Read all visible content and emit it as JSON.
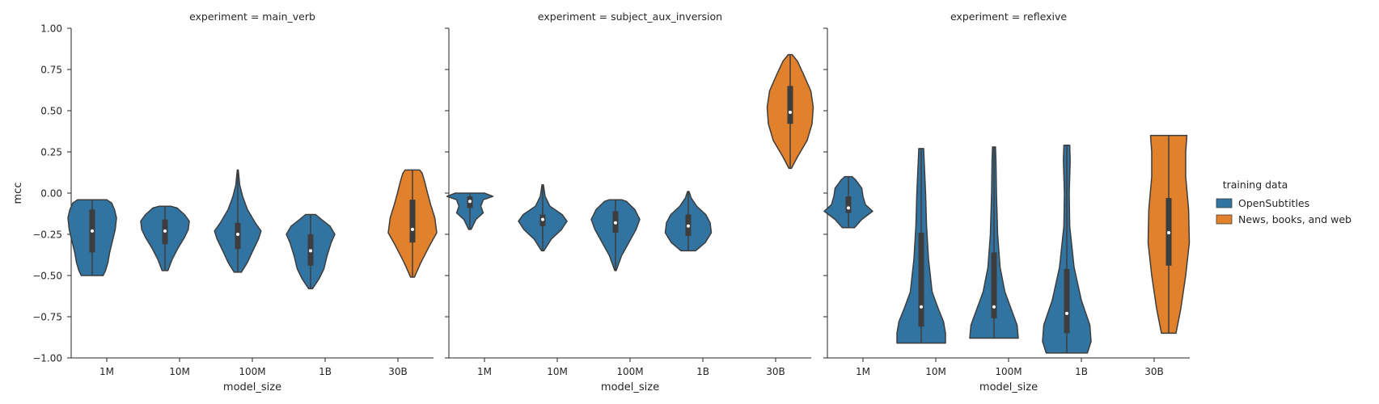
{
  "chart_data": {
    "type": "violin",
    "ylabel": "mcc",
    "xlabel": "model_size",
    "ylim": [
      -1.0,
      1.0
    ],
    "yticks": [
      "1.00",
      "0.75",
      "0.50",
      "0.25",
      "0.00",
      "−0.25",
      "−0.50",
      "−0.75",
      "−1.00"
    ],
    "ytick_values": [
      1.0,
      0.75,
      0.5,
      0.25,
      0.0,
      -0.25,
      -0.5,
      -0.75,
      -1.0
    ],
    "categories": [
      "1M",
      "10M",
      "100M",
      "1B",
      "30B"
    ],
    "legend": {
      "title": "training data",
      "entries": [
        {
          "label": "OpenSubtitles",
          "color": "#3274a1"
        },
        {
          "label": "News, books, and web",
          "color": "#e1812c"
        }
      ]
    },
    "panels": [
      {
        "title": "experiment = main_verb",
        "violins": [
          {
            "category": "1M",
            "series": "OpenSubtitles",
            "min": -0.5,
            "max": -0.04,
            "q1": -0.36,
            "median": -0.23,
            "q3": -0.1,
            "shape": [
              [
                -0.5,
                0.45
              ],
              [
                -0.47,
                0.55
              ],
              [
                -0.42,
                0.65
              ],
              [
                -0.36,
                0.72
              ],
              [
                -0.3,
                0.82
              ],
              [
                -0.22,
                0.95
              ],
              [
                -0.15,
                1.0
              ],
              [
                -0.1,
                0.92
              ],
              [
                -0.06,
                0.8
              ],
              [
                -0.04,
                0.6
              ]
            ]
          },
          {
            "category": "10M",
            "series": "OpenSubtitles",
            "min": -0.47,
            "max": -0.08,
            "q1": -0.31,
            "median": -0.23,
            "q3": -0.16,
            "shape": [
              [
                -0.47,
                0.12
              ],
              [
                -0.4,
                0.3
              ],
              [
                -0.33,
                0.55
              ],
              [
                -0.27,
                0.8
              ],
              [
                -0.22,
                0.96
              ],
              [
                -0.17,
                1.0
              ],
              [
                -0.13,
                0.8
              ],
              [
                -0.09,
                0.5
              ],
              [
                -0.08,
                0.25
              ]
            ]
          },
          {
            "category": "100M",
            "series": "OpenSubtitles",
            "min": -0.48,
            "max": 0.14,
            "q1": -0.34,
            "median": -0.25,
            "q3": -0.18,
            "shape": [
              [
                -0.48,
                0.15
              ],
              [
                -0.42,
                0.4
              ],
              [
                -0.35,
                0.62
              ],
              [
                -0.28,
                0.85
              ],
              [
                -0.23,
                0.96
              ],
              [
                -0.18,
                0.72
              ],
              [
                -0.1,
                0.4
              ],
              [
                -0.02,
                0.2
              ],
              [
                0.05,
                0.08
              ],
              [
                0.14,
                0.02
              ]
            ]
          },
          {
            "category": "1B",
            "series": "OpenSubtitles",
            "min": -0.58,
            "max": -0.13,
            "q1": -0.44,
            "median": -0.35,
            "q3": -0.25,
            "shape": [
              [
                -0.58,
                0.08
              ],
              [
                -0.52,
                0.35
              ],
              [
                -0.46,
                0.55
              ],
              [
                -0.38,
                0.68
              ],
              [
                -0.3,
                0.85
              ],
              [
                -0.25,
                1.0
              ],
              [
                -0.2,
                0.8
              ],
              [
                -0.16,
                0.45
              ],
              [
                -0.13,
                0.2
              ]
            ]
          },
          {
            "category": "30B",
            "series": "News, books, and web",
            "min": -0.51,
            "max": 0.14,
            "q1": -0.3,
            "median": -0.22,
            "q3": -0.04,
            "shape": [
              [
                -0.51,
                0.08
              ],
              [
                -0.42,
                0.35
              ],
              [
                -0.32,
                0.7
              ],
              [
                -0.24,
                1.0
              ],
              [
                -0.15,
                0.92
              ],
              [
                -0.07,
                0.75
              ],
              [
                0.0,
                0.62
              ],
              [
                0.07,
                0.5
              ],
              [
                0.12,
                0.4
              ],
              [
                0.14,
                0.3
              ]
            ]
          }
        ]
      },
      {
        "title": "experiment = subject_aux_inversion",
        "violins": [
          {
            "category": "1M",
            "series": "OpenSubtitles",
            "min": -0.22,
            "max": 0.0,
            "q1": -0.09,
            "median": -0.05,
            "q3": -0.02,
            "shape": [
              [
                -0.22,
                0.05
              ],
              [
                -0.16,
                0.25
              ],
              [
                -0.12,
                0.55
              ],
              [
                -0.08,
                0.45
              ],
              [
                -0.04,
                0.55
              ],
              [
                -0.02,
                0.95
              ],
              [
                0.0,
                0.6
              ]
            ]
          },
          {
            "category": "10M",
            "series": "OpenSubtitles",
            "min": -0.35,
            "max": 0.05,
            "q1": -0.2,
            "median": -0.16,
            "q3": -0.13,
            "shape": [
              [
                -0.35,
                0.05
              ],
              [
                -0.28,
                0.35
              ],
              [
                -0.22,
                0.78
              ],
              [
                -0.17,
                1.0
              ],
              [
                -0.13,
                0.8
              ],
              [
                -0.08,
                0.3
              ],
              [
                -0.02,
                0.1
              ],
              [
                0.05,
                0.03
              ]
            ]
          },
          {
            "category": "100M",
            "series": "OpenSubtitles",
            "min": -0.47,
            "max": -0.04,
            "q1": -0.24,
            "median": -0.18,
            "q3": -0.11,
            "shape": [
              [
                -0.47,
                0.03
              ],
              [
                -0.38,
                0.25
              ],
              [
                -0.3,
                0.55
              ],
              [
                -0.22,
                0.85
              ],
              [
                -0.16,
                1.0
              ],
              [
                -0.1,
                0.8
              ],
              [
                -0.05,
                0.45
              ],
              [
                -0.04,
                0.25
              ]
            ]
          },
          {
            "category": "1B",
            "series": "OpenSubtitles",
            "min": -0.35,
            "max": 0.01,
            "q1": -0.26,
            "median": -0.2,
            "q3": -0.13,
            "shape": [
              [
                -0.35,
                0.3
              ],
              [
                -0.3,
                0.7
              ],
              [
                -0.24,
                0.95
              ],
              [
                -0.18,
                0.9
              ],
              [
                -0.13,
                0.72
              ],
              [
                -0.08,
                0.35
              ],
              [
                -0.03,
                0.12
              ],
              [
                0.01,
                0.03
              ]
            ]
          },
          {
            "category": "30B",
            "series": "News, books, and web",
            "min": 0.15,
            "max": 0.84,
            "q1": 0.42,
            "median": 0.49,
            "q3": 0.65,
            "shape": [
              [
                0.15,
                0.05
              ],
              [
                0.22,
                0.3
              ],
              [
                0.32,
                0.7
              ],
              [
                0.42,
                0.9
              ],
              [
                0.52,
                0.95
              ],
              [
                0.62,
                0.85
              ],
              [
                0.72,
                0.55
              ],
              [
                0.8,
                0.3
              ],
              [
                0.84,
                0.08
              ]
            ]
          }
        ]
      },
      {
        "title": "experiment = reflexive",
        "violins": [
          {
            "category": "1M",
            "series": "OpenSubtitles",
            "min": -0.21,
            "max": 0.1,
            "q1": -0.12,
            "median": -0.09,
            "q3": -0.02,
            "shape": [
              [
                -0.21,
                0.25
              ],
              [
                -0.16,
                0.55
              ],
              [
                -0.11,
                1.0
              ],
              [
                -0.07,
                0.7
              ],
              [
                -0.02,
                0.6
              ],
              [
                0.03,
                0.55
              ],
              [
                0.08,
                0.3
              ],
              [
                0.1,
                0.15
              ]
            ]
          },
          {
            "category": "10M",
            "series": "OpenSubtitles",
            "min": -0.91,
            "max": 0.27,
            "q1": -0.81,
            "median": -0.69,
            "q3": -0.24,
            "shape": [
              [
                -0.91,
                1.0
              ],
              [
                -0.85,
                1.0
              ],
              [
                -0.78,
                0.92
              ],
              [
                -0.7,
                0.7
              ],
              [
                -0.6,
                0.45
              ],
              [
                -0.4,
                0.3
              ],
              [
                -0.2,
                0.22
              ],
              [
                0.0,
                0.18
              ],
              [
                0.2,
                0.12
              ],
              [
                0.27,
                0.1
              ]
            ]
          },
          {
            "category": "100M",
            "series": "OpenSubtitles",
            "min": -0.88,
            "max": 0.28,
            "q1": -0.76,
            "median": -0.69,
            "q3": -0.36,
            "shape": [
              [
                -0.88,
                1.0
              ],
              [
                -0.8,
                0.95
              ],
              [
                -0.72,
                0.75
              ],
              [
                -0.6,
                0.45
              ],
              [
                -0.45,
                0.25
              ],
              [
                -0.25,
                0.15
              ],
              [
                0.0,
                0.1
              ],
              [
                0.2,
                0.08
              ],
              [
                0.28,
                0.06
              ]
            ]
          },
          {
            "category": "1B",
            "series": "OpenSubtitles",
            "min": -0.97,
            "max": 0.29,
            "q1": -0.85,
            "median": -0.73,
            "q3": -0.46,
            "shape": [
              [
                -0.97,
                0.85
              ],
              [
                -0.9,
                1.0
              ],
              [
                -0.8,
                0.95
              ],
              [
                -0.65,
                0.6
              ],
              [
                -0.45,
                0.3
              ],
              [
                -0.2,
                0.12
              ],
              [
                0.0,
                0.1
              ],
              [
                0.2,
                0.14
              ],
              [
                0.29,
                0.12
              ]
            ]
          },
          {
            "category": "30B",
            "series": "News, books, and web",
            "min": -0.85,
            "max": 0.35,
            "q1": -0.44,
            "median": -0.24,
            "q3": -0.03,
            "shape": [
              [
                -0.85,
                0.3
              ],
              [
                -0.7,
                0.5
              ],
              [
                -0.5,
                0.7
              ],
              [
                -0.3,
                0.85
              ],
              [
                -0.1,
                0.82
              ],
              [
                0.1,
                0.7
              ],
              [
                0.25,
                0.7
              ],
              [
                0.35,
                0.75
              ]
            ]
          }
        ]
      }
    ]
  }
}
